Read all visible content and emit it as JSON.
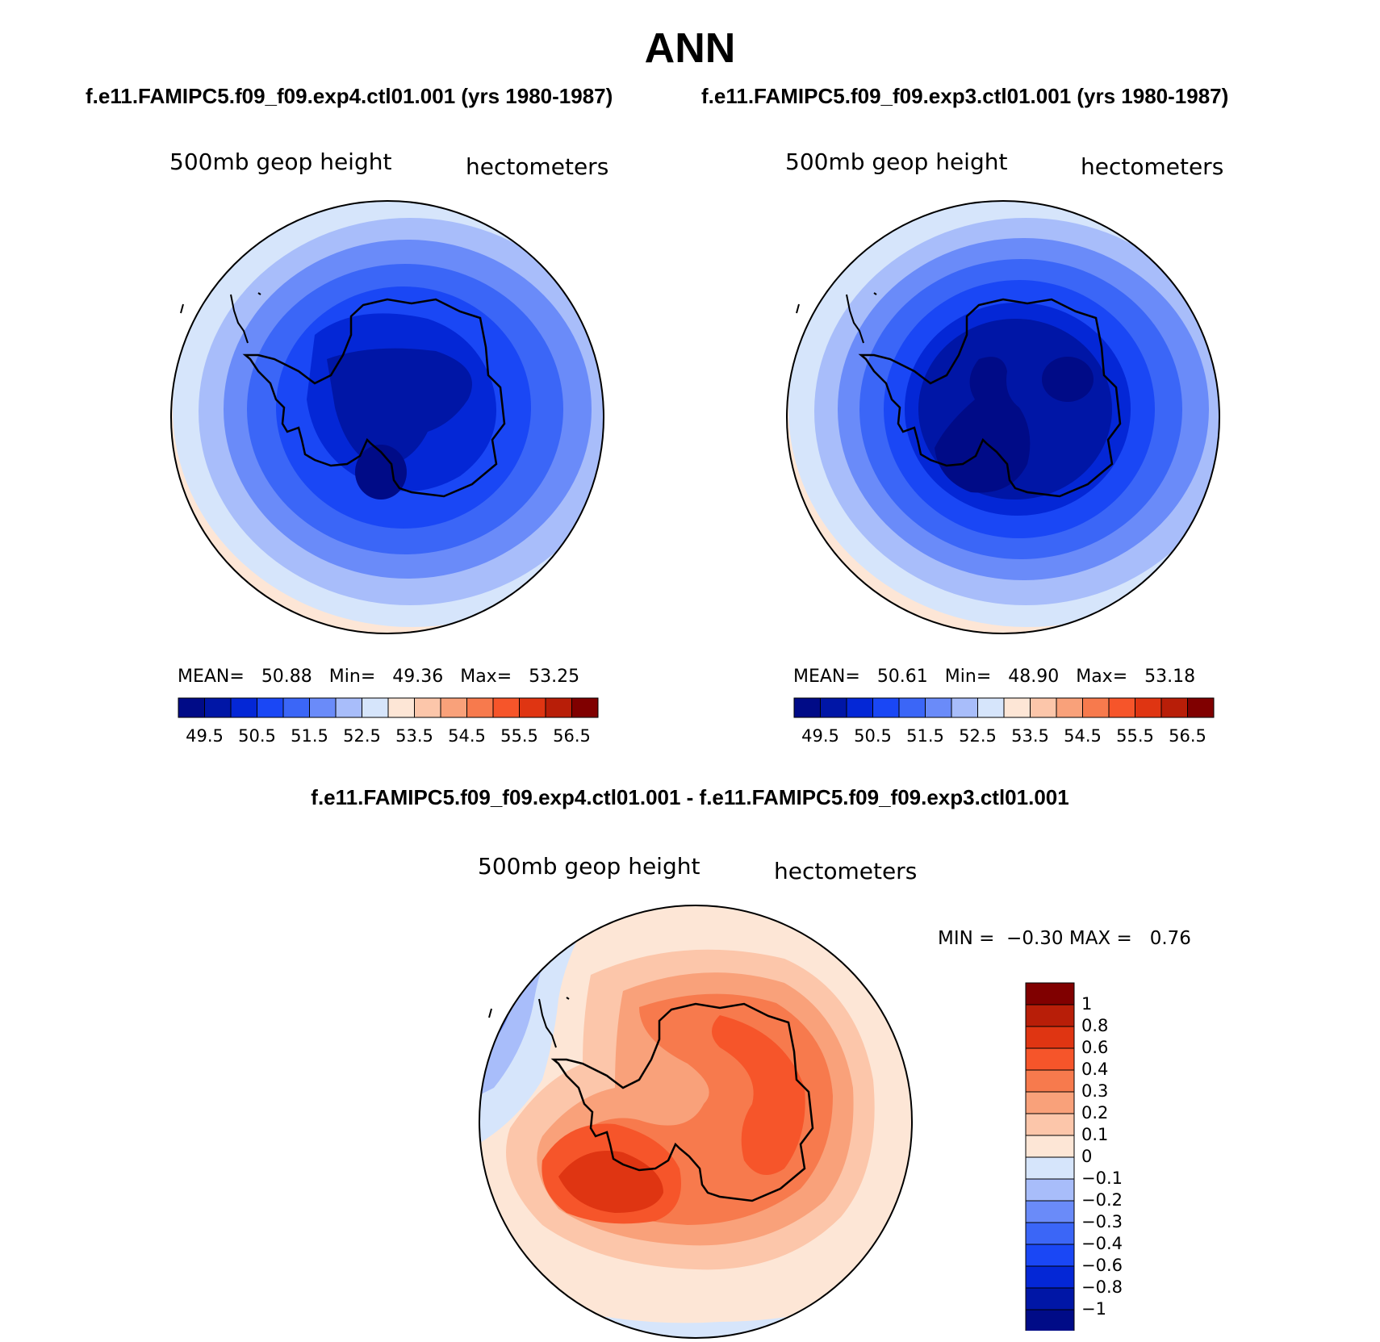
{
  "title": "ANN",
  "top_titles": {
    "left": "f.e11.FAMIPC5.f09_f09.exp4.ctl01.001 (yrs 1980-1987)",
    "right": "f.e11.FAMIPC5.f09_f09.exp3.ctl01.001 (yrs 1980-1987)"
  },
  "diff_title": "f.e11.FAMIPC5.f09_f09.exp4.ctl01.001 - f.e11.FAMIPC5.f09_f09.exp3.ctl01.001",
  "panels": [
    {
      "variable": "500mb geop height",
      "units": "hectometers",
      "stats": {
        "mean_label": "MEAN=",
        "mean": "50.88",
        "min_label": "Min=",
        "min": "49.36",
        "max_label": "Max=",
        "max": "53.25"
      }
    },
    {
      "variable": "500mb geop height",
      "units": "hectometers",
      "stats": {
        "mean_label": "MEAN=",
        "mean": "50.61",
        "min_label": "Min=",
        "min": "48.90",
        "max_label": "Max=",
        "max": "53.18"
      }
    }
  ],
  "diff_panel": {
    "variable": "500mb geop height",
    "units": "hectometers",
    "stats": {
      "min_label": "MIN =",
      "min": "−0.30",
      "max_label": "MAX =",
      "max": "0.76"
    }
  },
  "colorbar_abs": {
    "colors": [
      "#000b87",
      "#0016a6",
      "#0427d6",
      "#1a47f5",
      "#3b66f7",
      "#6a8bf9",
      "#a8bdfa",
      "#d6e5fb",
      "#fde6d6",
      "#fcc6aa",
      "#f9a17a",
      "#f77a4d",
      "#f6552a",
      "#df3512",
      "#b81e08",
      "#800000"
    ],
    "tick_labels": [
      "49.5",
      "50.5",
      "51.5",
      "52.5",
      "53.5",
      "54.5",
      "55.5",
      "56.5"
    ]
  },
  "colorbar_diff": {
    "colors": [
      "#000b87",
      "#0016a6",
      "#0427d6",
      "#1a47f5",
      "#3b66f7",
      "#6a8bf9",
      "#a8bdfa",
      "#d6e5fb",
      "#fde6d6",
      "#fcc6aa",
      "#f9a17a",
      "#f77a4d",
      "#f6552a",
      "#df3512",
      "#b81e08",
      "#800000"
    ],
    "tick_labels": [
      "1",
      "0.8",
      "0.6",
      "0.4",
      "0.3",
      "0.2",
      "0.1",
      "0",
      "−0.1",
      "−0.2",
      "−0.3",
      "−0.4",
      "−0.6",
      "−0.8",
      "−1"
    ]
  }
}
